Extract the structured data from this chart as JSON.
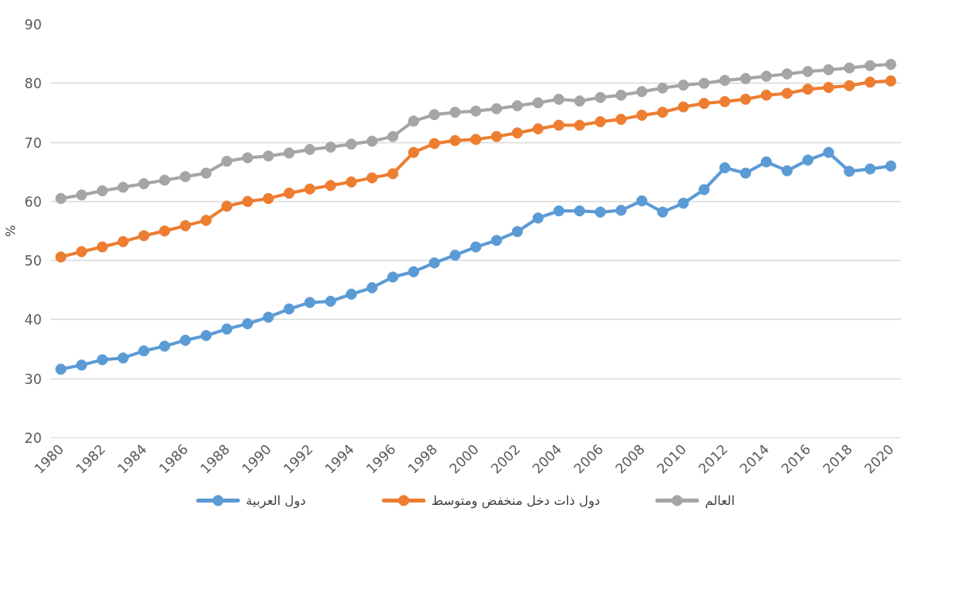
{
  "chart_data": {
    "type": "line",
    "ylabel": "%",
    "x": [
      1980,
      1981,
      1982,
      1983,
      1984,
      1985,
      1986,
      1987,
      1988,
      1989,
      1990,
      1991,
      1992,
      1993,
      1994,
      1995,
      1996,
      1997,
      1998,
      1999,
      2000,
      2001,
      2002,
      2003,
      2004,
      2005,
      2006,
      2007,
      2008,
      2009,
      2010,
      2011,
      2012,
      2013,
      2014,
      2015,
      2016,
      2017,
      2018,
      2019,
      2020
    ],
    "series": [
      {
        "name": "دول العربية",
        "color": "#5b9bd5",
        "values": [
          31.6,
          32.3,
          33.2,
          33.5,
          34.7,
          35.5,
          36.5,
          37.3,
          38.4,
          39.3,
          40.4,
          41.8,
          42.9,
          43.1,
          44.3,
          45.4,
          47.2,
          48.1,
          49.6,
          50.9,
          52.3,
          53.4,
          54.9,
          57.2,
          58.4,
          58.4,
          58.2,
          58.5,
          60.1,
          58.2,
          59.7,
          62.0,
          65.7,
          64.8,
          66.7,
          65.2,
          67.0,
          68.3,
          65.1,
          65.5,
          66.0
        ]
      },
      {
        "name": "دول ذات دخل منخفض ومتوسط",
        "color": "#ed7d31",
        "values": [
          50.6,
          51.5,
          52.3,
          53.2,
          54.2,
          55.0,
          55.9,
          56.8,
          59.2,
          60.0,
          60.5,
          61.4,
          62.1,
          62.7,
          63.3,
          64.0,
          64.7,
          68.3,
          69.8,
          70.3,
          70.5,
          71.0,
          71.6,
          72.3,
          72.9,
          72.9,
          73.5,
          73.9,
          74.6,
          75.1,
          76.0,
          76.6,
          76.9,
          77.3,
          78.0,
          78.3,
          79.0,
          79.3,
          79.6,
          80.2,
          80.4
        ]
      },
      {
        "name": "العالم",
        "color": "#a5a5a5",
        "values": [
          60.5,
          61.1,
          61.8,
          62.4,
          63.0,
          63.6,
          64.2,
          64.8,
          66.8,
          67.4,
          67.7,
          68.2,
          68.8,
          69.2,
          69.7,
          70.2,
          71.0,
          73.6,
          74.7,
          75.1,
          75.3,
          75.7,
          76.2,
          76.7,
          77.3,
          77.0,
          77.6,
          78.0,
          78.6,
          79.2,
          79.7,
          80.0,
          80.5,
          80.8,
          81.2,
          81.6,
          82.0,
          82.3,
          82.6,
          83.0,
          83.2
        ]
      }
    ],
    "xlim": [
      1979.5,
      2020.5
    ],
    "xticks": [
      1980,
      1982,
      1984,
      1986,
      1988,
      1990,
      1992,
      1994,
      1996,
      1998,
      2000,
      2002,
      2004,
      2006,
      2008,
      2010,
      2012,
      2014,
      2016,
      2018,
      2020
    ],
    "ylim": [
      20,
      90
    ],
    "yticks": [
      20,
      30,
      40,
      50,
      60,
      70,
      80,
      90
    ],
    "grid": "y",
    "legend": "bottom",
    "marker": "circle",
    "line_style": "solid"
  }
}
